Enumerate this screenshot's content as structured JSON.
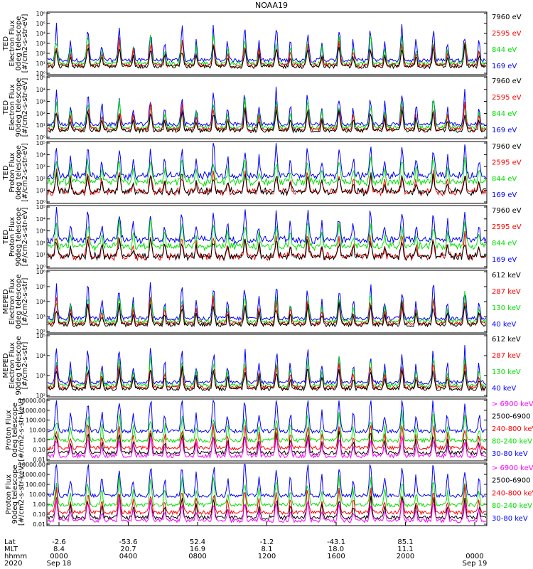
{
  "title": "NOAA19",
  "colors": {
    "black": "#000000",
    "red": "#ff0000",
    "green": "#00e000",
    "blue": "#0000ff",
    "magenta": "#ff00ff"
  },
  "chart_data": [
    {
      "type": "line",
      "ylabel": [
        "TED",
        "Electron Flux",
        "0deg telescope",
        "[#/cm2-s-str-eV]"
      ],
      "yticks": [
        "10⁰",
        "10¹",
        "10²",
        "10³",
        "10⁴",
        "10⁵",
        "10⁶"
      ],
      "ylim_log": [
        0,
        6
      ],
      "legend": [
        {
          "label": "7960 eV",
          "color": "black"
        },
        {
          "label": "2595 eV",
          "color": "red"
        },
        {
          "label": "844 eV",
          "color": "green"
        },
        {
          "label": "169 eV",
          "color": "blue"
        }
      ]
    },
    {
      "type": "line",
      "ylabel": [
        "TED",
        "Electron Flux",
        "90deg telescope",
        "[#/cm2-s-str-eV]"
      ],
      "yticks": [
        "10⁰",
        "10¹",
        "10²",
        "10³",
        "10⁴",
        "10⁵"
      ],
      "ylim_log": [
        0,
        5
      ],
      "legend": [
        {
          "label": "7960 eV",
          "color": "black"
        },
        {
          "label": "2595 eV",
          "color": "red"
        },
        {
          "label": "844 eV",
          "color": "green"
        },
        {
          "label": "169 eV",
          "color": "blue"
        }
      ]
    },
    {
      "type": "line",
      "ylabel": [
        "TED",
        "Proton Flux",
        "0deg telescope",
        "[#/cm2-s-str-eV]"
      ],
      "yticks": [
        "10⁰",
        "10¹",
        "10²",
        "10³",
        "10⁴",
        "10⁵"
      ],
      "ylim_log": [
        0,
        5
      ],
      "legend": [
        {
          "label": "7960 eV",
          "color": "black"
        },
        {
          "label": "2595 eV",
          "color": "red"
        },
        {
          "label": "844 eV",
          "color": "green"
        },
        {
          "label": "169 eV",
          "color": "blue"
        }
      ]
    },
    {
      "type": "line",
      "ylabel": [
        "TED",
        "Proton Flux",
        "90deg telescope",
        "[#/cm2-s-str-eV]"
      ],
      "yticks": [
        "10⁰",
        "10¹",
        "10²",
        "10³",
        "10⁴",
        "10⁵"
      ],
      "ylim_log": [
        0,
        5
      ],
      "legend": [
        {
          "label": "7960 eV",
          "color": "black"
        },
        {
          "label": "2595 eV",
          "color": "red"
        },
        {
          "label": "844 eV",
          "color": "green"
        },
        {
          "label": "169 eV",
          "color": "blue"
        }
      ]
    },
    {
      "type": "line",
      "ylabel": [
        "MEPED",
        "Electron Flux",
        "0deg telescope",
        "[#/cm2-s-str]"
      ],
      "yticks": [
        "10²",
        "10³",
        "10⁴",
        "10⁵",
        "10⁶"
      ],
      "ylim_log": [
        2,
        6
      ],
      "legend": [
        {
          "label": "612 keV",
          "color": "black"
        },
        {
          "label": "287 keV",
          "color": "red"
        },
        {
          "label": "130 keV",
          "color": "green"
        },
        {
          "label": "40 keV",
          "color": "blue"
        }
      ]
    },
    {
      "type": "line",
      "ylabel": [
        "MEPED",
        "Electron Flux",
        "90deg telescope",
        "[#/cm2-s-str]"
      ],
      "yticks": [
        "10²",
        "10³",
        "10⁴",
        "10⁵"
      ],
      "ylim_log": [
        2,
        5.5
      ],
      "legend": [
        {
          "label": "612 keV",
          "color": "black"
        },
        {
          "label": "287 keV",
          "color": "red"
        },
        {
          "label": "130 keV",
          "color": "green"
        },
        {
          "label": "40 keV",
          "color": "blue"
        }
      ]
    },
    {
      "type": "line",
      "ylabel": [
        "Proton Flux",
        "0deg telescope",
        "[#/cm2-s-str-keV]"
      ],
      "yticks": [
        "0.01",
        "0.10",
        "1.00",
        "10.00",
        "100.00",
        "1000.00",
        "10000.00"
      ],
      "ylim_log": [
        -2,
        4
      ],
      "legend": [
        {
          "label": "> 6900 keV",
          "color": "magenta"
        },
        {
          "label": "2500-6900",
          "color": "black"
        },
        {
          "label": "240-800 keV",
          "color": "red"
        },
        {
          "label": "80-240 keV",
          "color": "green"
        },
        {
          "label": "30-80 keV",
          "color": "blue"
        }
      ]
    },
    {
      "type": "line",
      "ylabel": [
        "Proton Flux",
        "90deg telescope",
        "[#/cm2-s-str-keV]"
      ],
      "yticks": [
        "0.01",
        "0.10",
        "1.00",
        "10.00",
        "100.00",
        "1000.00",
        "10000.00"
      ],
      "ylim_log": [
        -2,
        4
      ],
      "legend": [
        {
          "label": "> 6900 keV",
          "color": "magenta"
        },
        {
          "label": "2500-6900",
          "color": "black"
        },
        {
          "label": "240-800 keV",
          "color": "red"
        },
        {
          "label": "80-240 keV",
          "color": "green"
        },
        {
          "label": "30-80 keV",
          "color": "blue"
        }
      ]
    }
  ],
  "xaxis": {
    "row_labels": [
      "Lat",
      "MLT",
      "hhmm",
      "2020"
    ],
    "ticks": [
      {
        "lat": "-2.6",
        "mlt": "8.4",
        "hhmm": "0000",
        "date": "Sep 18"
      },
      {
        "lat": "-53.6",
        "mlt": "20.7",
        "hhmm": "0400",
        "date": ""
      },
      {
        "lat": "52.4",
        "mlt": "16.9",
        "hhmm": "0800",
        "date": ""
      },
      {
        "lat": "-1.2",
        "mlt": "8.1",
        "hhmm": "1200",
        "date": ""
      },
      {
        "lat": "-43.1",
        "mlt": "18.0",
        "hhmm": "1600",
        "date": ""
      },
      {
        "lat": "85.1",
        "mlt": "11.1",
        "hhmm": "2000",
        "date": ""
      },
      {
        "lat": "",
        "mlt": "",
        "hhmm": "0000",
        "date": "Sep 19"
      }
    ]
  }
}
